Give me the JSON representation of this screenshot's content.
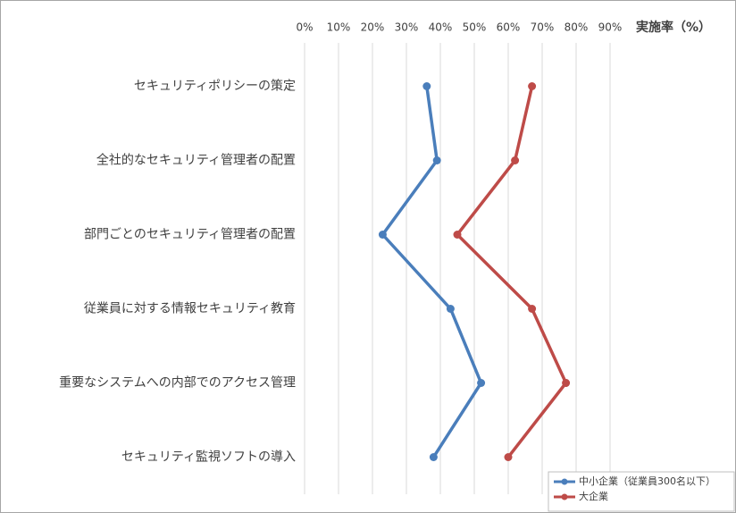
{
  "chart_data": {
    "type": "line",
    "xlabel": "実施率（%）",
    "categories": [
      "セキュリティポリシーの策定",
      "全社的なセキュリティ管理者の配置",
      "部門ごとのセキュリティ管理者の配置",
      "従業員に対する情報セキュリティ教育",
      "重要なシステムへの内部でのアクセス管理",
      "セキュリティ監視ソフトの導入"
    ],
    "series": [
      {
        "name": "中小企業（従業員300名以下）",
        "color": "#4a7ebb",
        "values": [
          36,
          39,
          23,
          43,
          52,
          38
        ]
      },
      {
        "name": "大企業",
        "color": "#be4b48",
        "values": [
          67,
          62,
          45,
          67,
          77,
          60
        ]
      }
    ],
    "xlim": [
      0,
      100
    ],
    "xticks": [
      {
        "value": 0,
        "label": "0%"
      },
      {
        "value": 10,
        "label": "10%"
      },
      {
        "value": 20,
        "label": "20%"
      },
      {
        "value": 30,
        "label": "30%"
      },
      {
        "value": 40,
        "label": "40%"
      },
      {
        "value": 50,
        "label": "50%"
      },
      {
        "value": 60,
        "label": "60%"
      },
      {
        "value": 70,
        "label": "70%"
      },
      {
        "value": 80,
        "label": "80%"
      },
      {
        "value": 90,
        "label": "90%"
      }
    ],
    "grid": true,
    "legend": "bottom-right"
  }
}
